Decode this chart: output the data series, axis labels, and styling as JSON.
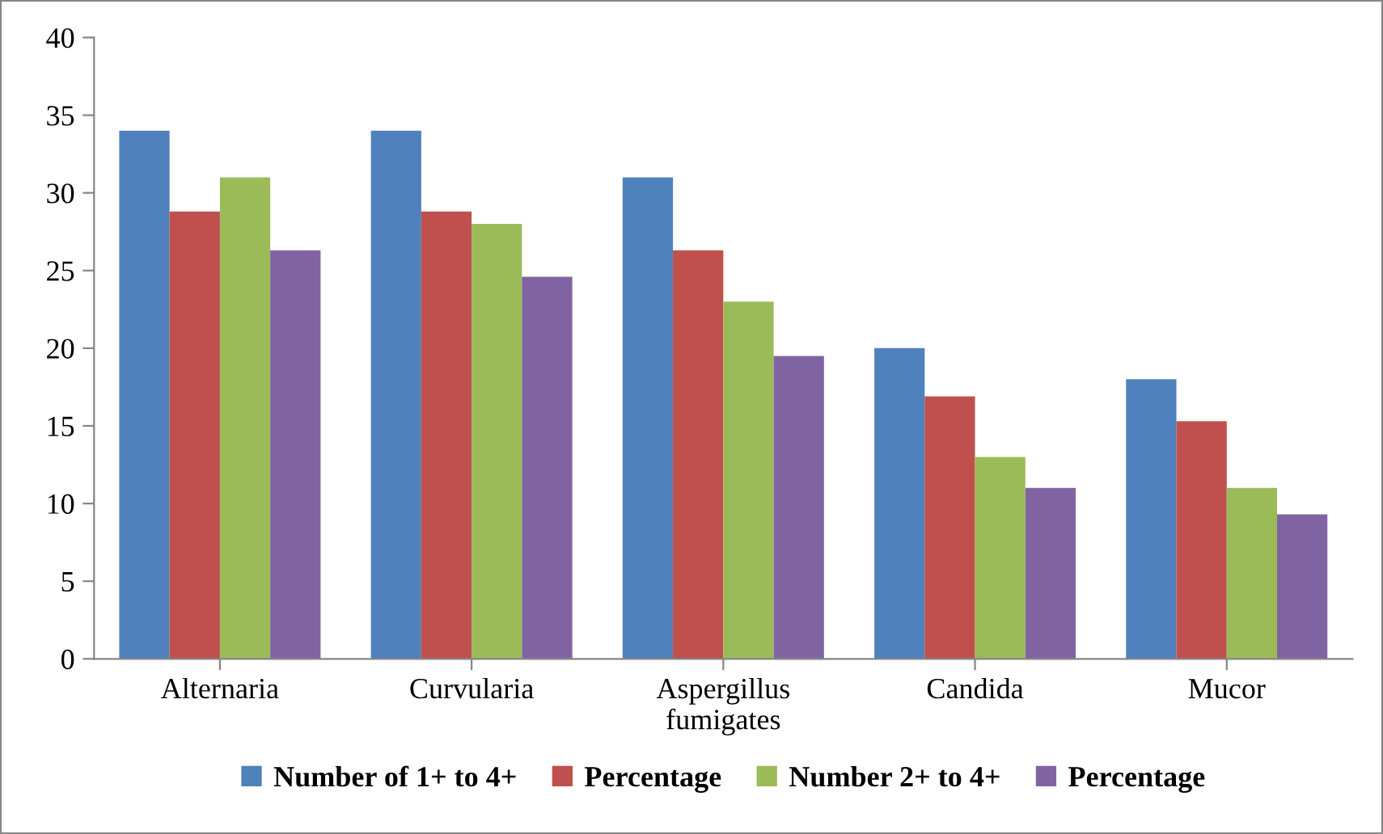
{
  "chart_data": {
    "type": "bar",
    "categories": [
      "Alternaria",
      "Curvularia",
      "Aspergillus\nfumigates",
      "Candida",
      "Mucor"
    ],
    "series": [
      {
        "name": "Number of 1+ to 4+",
        "color": "#4f81bd",
        "values": [
          34,
          34,
          31,
          20,
          18
        ]
      },
      {
        "name": "Percentage",
        "color": "#c0504d",
        "values": [
          28.8,
          28.8,
          26.3,
          16.9,
          15.3
        ]
      },
      {
        "name": "Number 2+ to 4+",
        "color": "#9bbb59",
        "values": [
          31,
          28,
          23,
          13,
          11
        ]
      },
      {
        "name": "Percentage",
        "color": "#8064a2",
        "values": [
          26.3,
          24.6,
          19.5,
          11,
          9.3
        ]
      }
    ],
    "ylim": [
      0,
      40
    ],
    "yticks": [
      0,
      5,
      10,
      15,
      20,
      25,
      30,
      35,
      40
    ],
    "grid": false,
    "legend": "bottom"
  }
}
